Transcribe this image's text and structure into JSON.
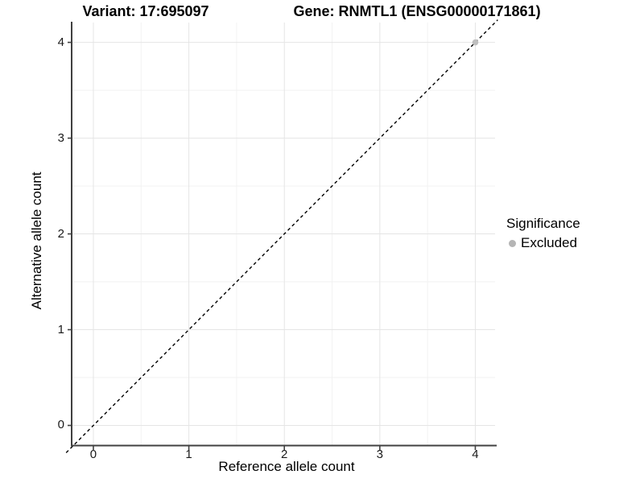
{
  "chart_data": {
    "type": "scatter",
    "titles": {
      "variant": "Variant: 17:695097",
      "gene": "Gene: RNMTL1 (ENSG00000171861)"
    },
    "xlabel": "Reference allele count",
    "ylabel": "Alternative allele count",
    "xticks": [
      0,
      1,
      2,
      3,
      4
    ],
    "yticks": [
      0,
      1,
      2,
      3,
      4
    ],
    "xlim": [
      -0.219,
      4.207
    ],
    "ylim": [
      -0.206,
      4.207
    ],
    "grid": {
      "major": true,
      "minor": true
    },
    "abline": {
      "slope": 1,
      "intercept": 0,
      "linetype": "dashed",
      "color": "#000000"
    },
    "series": [
      {
        "name": "Excluded",
        "color": "#bebebe",
        "points": [
          {
            "x": 4,
            "y": 4
          }
        ]
      }
    ],
    "legend": {
      "title": "Significance",
      "position": "right",
      "items": [
        {
          "label": "Excluded",
          "color": "#b5b5b5"
        }
      ]
    },
    "colors": {
      "background": "#ffffff",
      "grid_major": "#e5e5e5",
      "grid_minor": "#f2f2f2",
      "axis_line": "#404040",
      "tick_text": "#1a1a1a",
      "abline": "#000000",
      "point": "#bebebe"
    }
  }
}
